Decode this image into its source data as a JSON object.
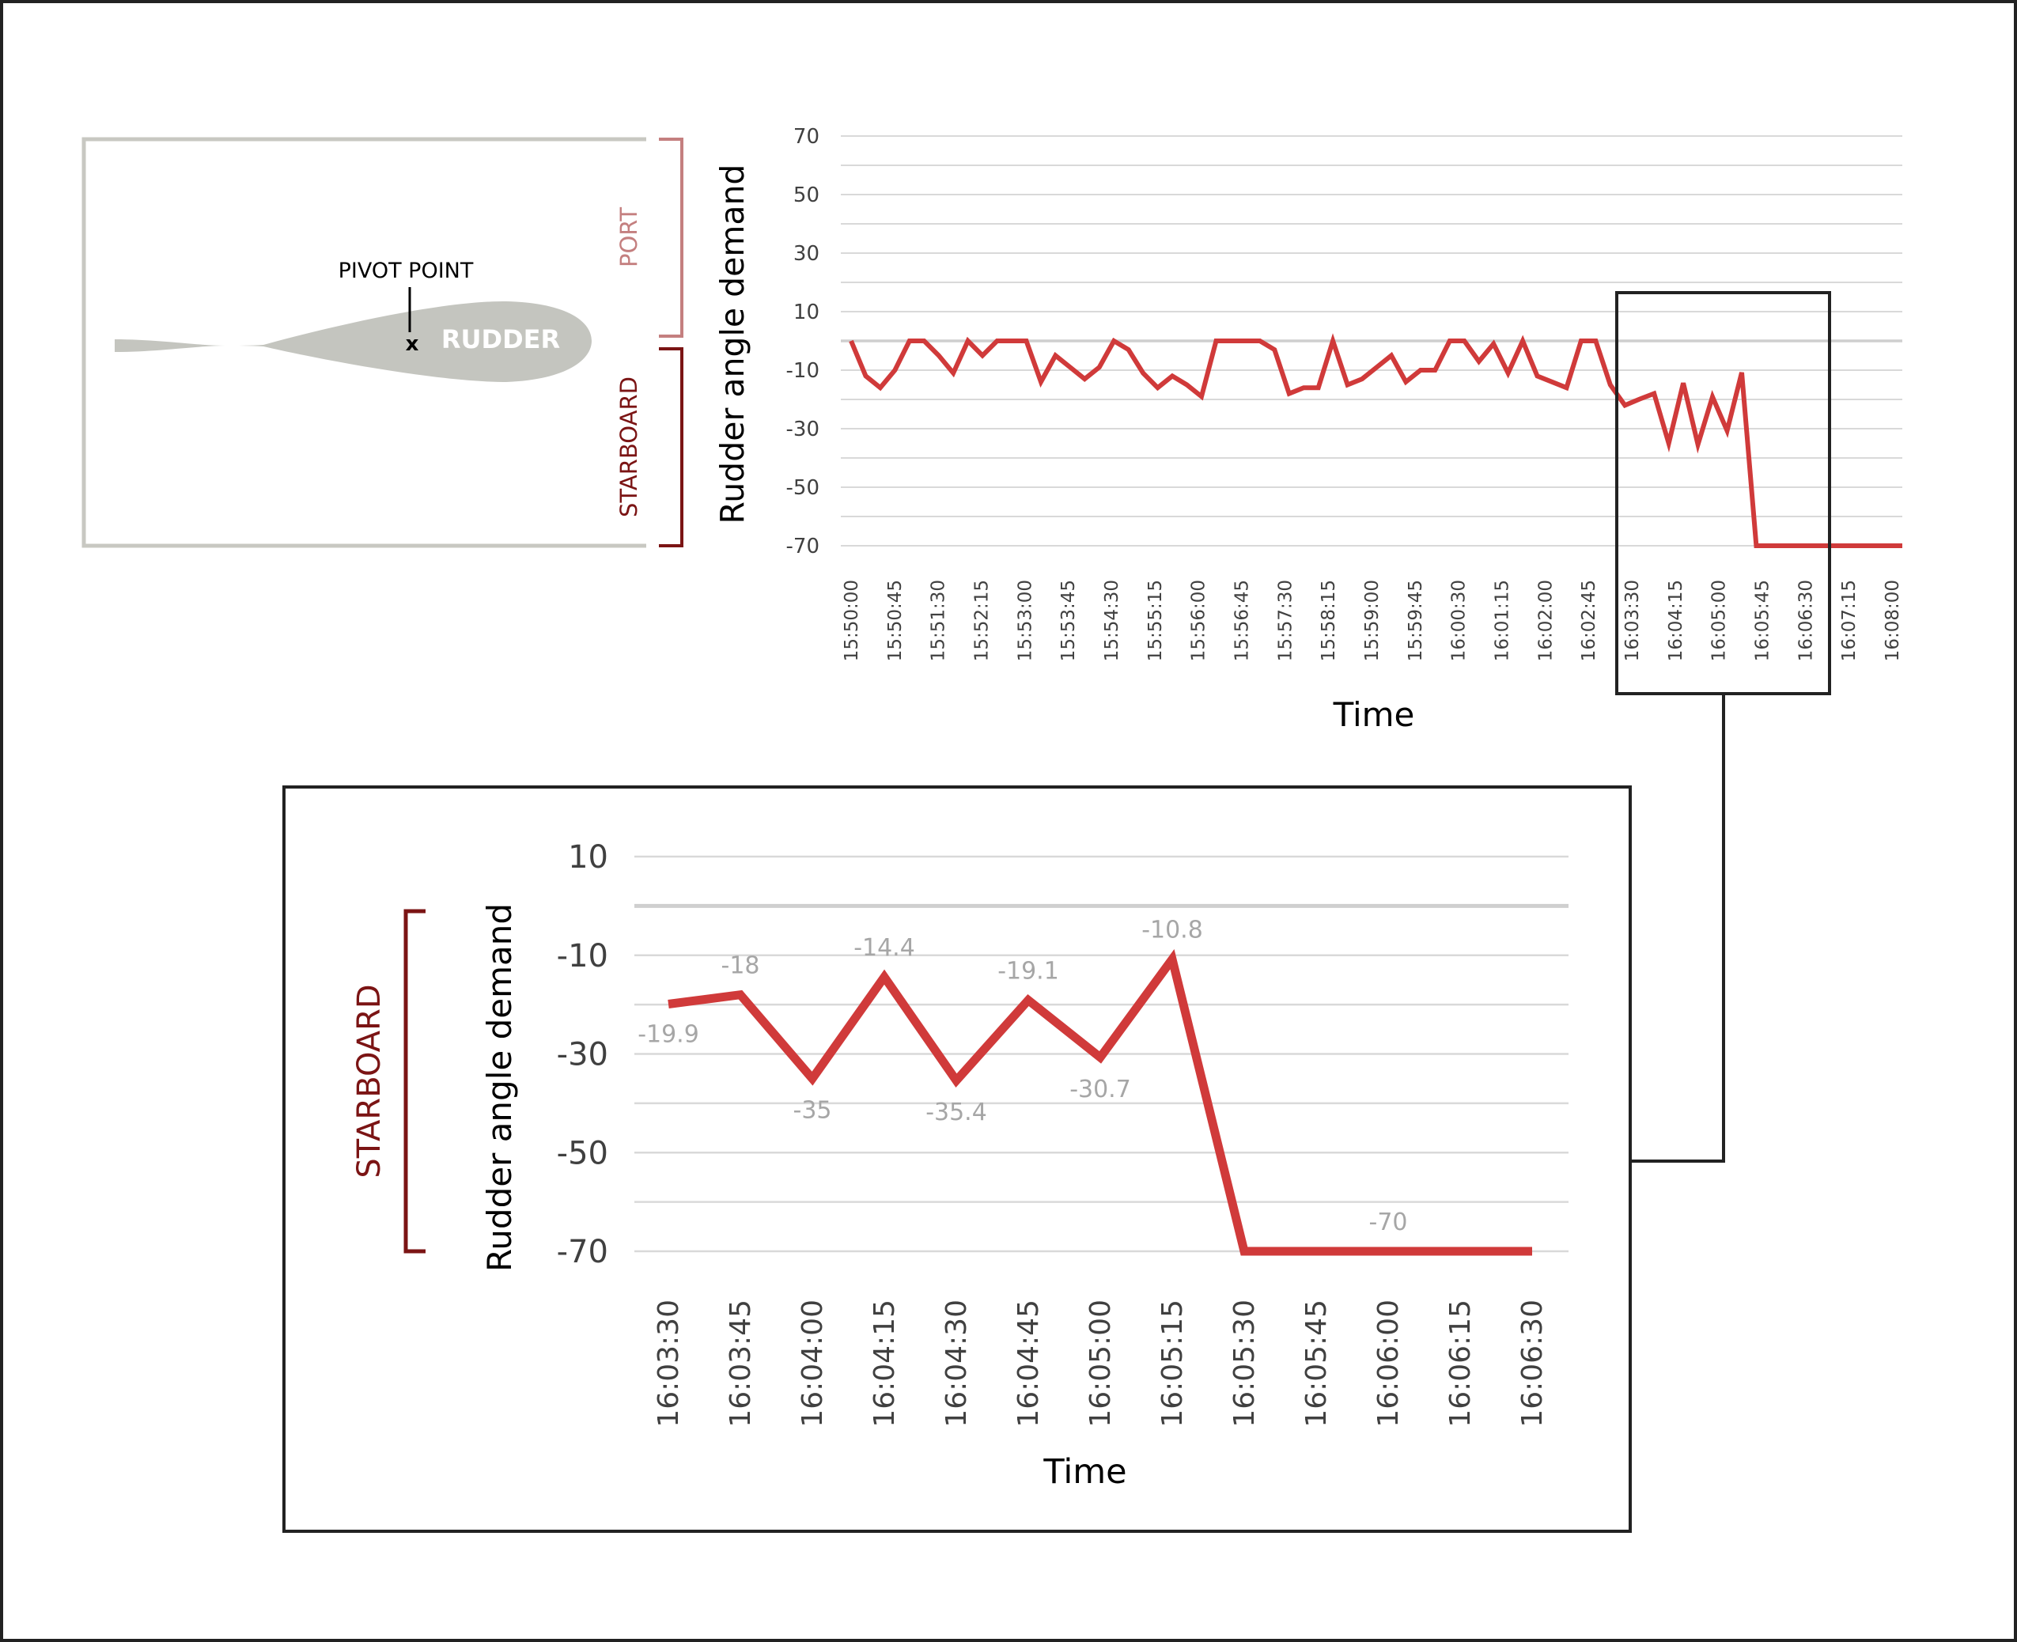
{
  "colors": {
    "line": "#d03a3a",
    "grid": "#d9d9d9",
    "zero_line": "#cfcfcf",
    "tick_text": "#404040",
    "axis_title": "#000000",
    "data_label": "#a6a6a6",
    "rudder_fill": "#c4c5bf",
    "frame": "#c8c8c2",
    "port": "#c47f7f",
    "starboard": "#7b1414",
    "highlight_box": "#222222"
  },
  "diagram": {
    "pivot_label": "PIVOT POINT",
    "pivot_marker": "x",
    "rudder_label": "RUDDER",
    "port_label": "PORT",
    "starboard_label": "STARBOARD"
  },
  "zoom": {
    "starboard_label": "STARBOARD"
  },
  "chart_data": [
    {
      "type": "line",
      "xlabel": "Time",
      "ylabel": "Rudder angle demand",
      "ylim": [
        -70,
        70
      ],
      "yticks": [
        70,
        50,
        30,
        10,
        -10,
        -30,
        -50,
        -70
      ],
      "grid": true,
      "x_tick_labels": [
        "15:50:00",
        "15:50:45",
        "15:51:30",
        "15:52:15",
        "15:53:00",
        "15:53:45",
        "15:54:30",
        "15:55:15",
        "15:56:00",
        "15:56:45",
        "15:57:30",
        "15:58:15",
        "15:59:00",
        "15:59:45",
        "16:00:30",
        "16:01:15",
        "16:02:00",
        "16:02:45",
        "16:03:30",
        "16:04:15",
        "16:05:00",
        "16:05:45",
        "16:06:30",
        "16:07:15",
        "16:08:00"
      ],
      "x_start": "15:50:00",
      "x_step_seconds": 15,
      "values": [
        0,
        -12,
        -16,
        -10,
        0,
        0,
        -5,
        -11,
        0,
        -5,
        0,
        0,
        0,
        -14,
        -5,
        -9,
        -13,
        -9,
        0,
        -3,
        -11,
        -16,
        -12,
        -15,
        -19,
        0,
        0,
        0,
        0,
        -3,
        -18,
        -16,
        -16,
        0,
        -15,
        -13,
        -9,
        -5,
        -14,
        -10,
        -10,
        0,
        0,
        -7,
        -1,
        -11,
        0,
        -12,
        -14,
        -16,
        0,
        0,
        -15,
        -22,
        -19.9,
        -18,
        -35,
        -14.4,
        -35.4,
        -19.1,
        -30.7,
        -10.8,
        -70,
        -70,
        -70,
        -70,
        -70,
        -70,
        -70,
        -70,
        -70,
        -70,
        -70
      ]
    },
    {
      "type": "line",
      "xlabel": "Time",
      "ylabel": "Rudder angle demand",
      "ylim": [
        -70,
        10
      ],
      "yticks": [
        10,
        -10,
        -30,
        -50,
        -70
      ],
      "grid": true,
      "categories": [
        "16:03:30",
        "16:03:45",
        "16:04:00",
        "16:04:15",
        "16:04:30",
        "16:04:45",
        "16:05:00",
        "16:05:15",
        "16:05:30",
        "16:05:45",
        "16:06:00",
        "16:06:15",
        "16:06:30"
      ],
      "values": [
        -19.9,
        -18,
        -35,
        -14.4,
        -35.4,
        -19.1,
        -30.7,
        -10.8,
        -70,
        -70,
        -70,
        -70,
        -70
      ],
      "data_labels": [
        "-19.9",
        "-18",
        "-35",
        "-14.4",
        "-35.4",
        "-19.1",
        "-30.7",
        "-10.8",
        "",
        "",
        "-70",
        "",
        ""
      ]
    }
  ]
}
